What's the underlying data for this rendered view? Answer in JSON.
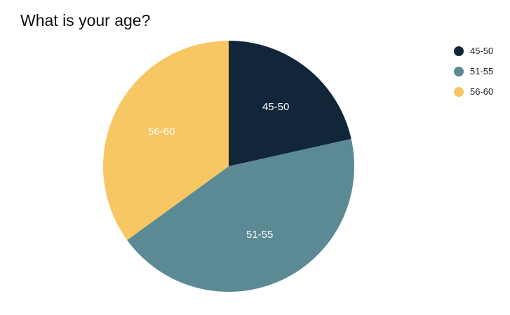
{
  "chart_data": {
    "type": "pie",
    "title": "What is your age?",
    "categories": [
      "45-50",
      "51-55",
      "56-60"
    ],
    "values": [
      21.5,
      43.5,
      35
    ],
    "colors": [
      "#12263a",
      "#5c8a94",
      "#f6c762"
    ],
    "slice_labels": [
      "45-50",
      "51-55",
      "56-60"
    ],
    "legend": [
      "45-50",
      "51-55",
      "56-60"
    ],
    "legend_position": "right-top",
    "start_angle": "12 o'clock",
    "direction": "clockwise"
  }
}
